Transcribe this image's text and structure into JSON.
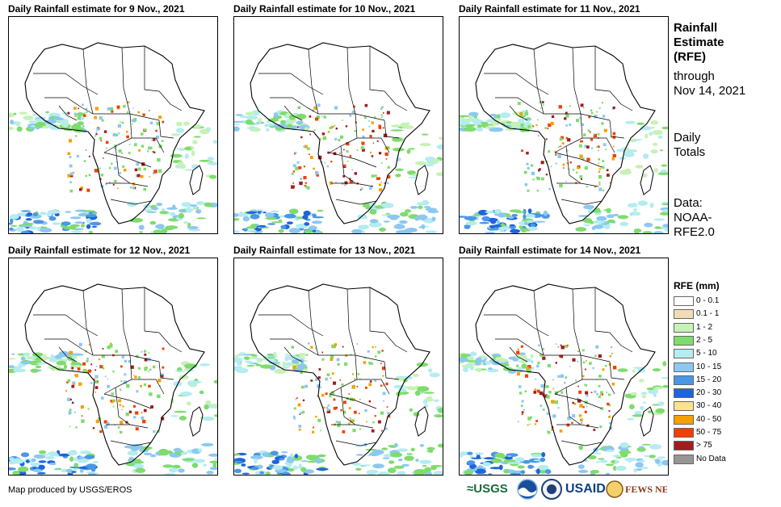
{
  "panels": [
    {
      "title": "Daily Rainfall estimate for 9 Nov., 2021"
    },
    {
      "title": "Daily Rainfall estimate for 10 Nov., 2021"
    },
    {
      "title": "Daily Rainfall estimate for 11 Nov., 2021"
    },
    {
      "title": "Daily Rainfall estimate for 12 Nov., 2021"
    },
    {
      "title": "Daily Rainfall estimate for 13 Nov., 2021"
    },
    {
      "title": "Daily Rainfall estimate for 14 Nov., 2021"
    }
  ],
  "sidebar": {
    "heading1": "Rainfall",
    "heading2": "Estimate",
    "heading3": "(RFE)",
    "through": "through",
    "date": "Nov 14, 2021",
    "daily": "Daily",
    "totals": "Totals",
    "data_label": "Data:",
    "data_source1": "NOAA-",
    "data_source2": "RFE2.0"
  },
  "legend": {
    "title": "RFE (mm)",
    "items": [
      {
        "label": "0 - 0.1",
        "color": "#ffffff"
      },
      {
        "label": "0.1 - 1",
        "color": "#f2dcb5"
      },
      {
        "label": "1 - 2",
        "color": "#c6f2b5"
      },
      {
        "label": "2 - 5",
        "color": "#7edc6e"
      },
      {
        "label": "5 - 10",
        "color": "#b4ecf0"
      },
      {
        "label": "10 - 15",
        "color": "#8cc8f0"
      },
      {
        "label": "15 - 20",
        "color": "#4b96e6"
      },
      {
        "label": "20 - 30",
        "color": "#1e64dc"
      },
      {
        "label": "30 - 40",
        "color": "#fde28c"
      },
      {
        "label": "40 - 50",
        "color": "#f5a000"
      },
      {
        "label": "50 - 75",
        "color": "#f04000"
      },
      {
        "label": "> 75",
        "color": "#a01e1e"
      },
      {
        "label": "No Data",
        "color": "#969696"
      }
    ]
  },
  "footer": {
    "credit": "Map produced by USGS/EROS"
  },
  "logos": {
    "usgs": "≈USGS",
    "noaa": "NOAA",
    "usaid": "USAID",
    "fewsnet": "FEWS NET"
  }
}
